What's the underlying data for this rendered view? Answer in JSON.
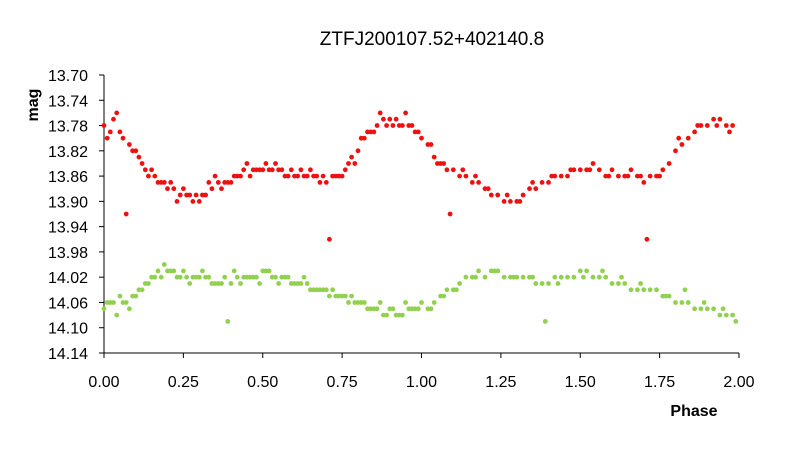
{
  "chart_data": {
    "type": "scatter",
    "title": "ZTFJ200107.52+402140.8",
    "xlabel": "Phase",
    "ylabel": "mag",
    "xlim": [
      0.0,
      2.0
    ],
    "ylim": [
      14.14,
      13.7
    ],
    "y_inverted": true,
    "xticks": [
      "0.00",
      "0.25",
      "0.50",
      "0.75",
      "1.00",
      "1.25",
      "1.50",
      "1.75",
      "2.00"
    ],
    "yticks": [
      "13.70",
      "13.74",
      "13.78",
      "13.82",
      "13.86",
      "13.90",
      "13.94",
      "13.98",
      "14.02",
      "14.06",
      "14.10",
      "14.14"
    ],
    "grid": false,
    "legend": "none",
    "series": [
      {
        "color": "#ee1111",
        "x": [
          0.0,
          0.02,
          0.04,
          0.06,
          0.08,
          0.1,
          0.12,
          0.14,
          0.16,
          0.18,
          0.2,
          0.22,
          0.24,
          0.26,
          0.28,
          0.3,
          0.32,
          0.34,
          0.36,
          0.38,
          0.4,
          0.42,
          0.44,
          0.46,
          0.48,
          0.5,
          0.52,
          0.54,
          0.56,
          0.58,
          0.6,
          0.62,
          0.64,
          0.66,
          0.68,
          0.7,
          0.72,
          0.74,
          0.76,
          0.78,
          0.8,
          0.82,
          0.84,
          0.86,
          0.88,
          0.9,
          0.92,
          0.94,
          0.96,
          0.98,
          0.07,
          0.71,
          0.01,
          0.03,
          0.05,
          0.09,
          0.11,
          0.13,
          0.15,
          0.17,
          0.19,
          0.21,
          0.23,
          0.25,
          0.27,
          0.29,
          0.31,
          0.33,
          0.35,
          0.37,
          0.39,
          0.41,
          0.43,
          0.45,
          0.47,
          0.49,
          0.51,
          0.53,
          0.55,
          0.57,
          0.59,
          0.61,
          0.63,
          0.65,
          0.67,
          0.69,
          0.73,
          0.75,
          0.77,
          0.79,
          0.81,
          0.83,
          0.85,
          0.87,
          0.89,
          0.91,
          0.93,
          0.95,
          0.97,
          0.99,
          1.0,
          1.02,
          1.04,
          1.06,
          1.08,
          1.1,
          1.12,
          1.14,
          1.16,
          1.18,
          1.2,
          1.22,
          1.24,
          1.26,
          1.28,
          1.3,
          1.32,
          1.34,
          1.36,
          1.38,
          1.4,
          1.42,
          1.44,
          1.46,
          1.48,
          1.5,
          1.52,
          1.54,
          1.56,
          1.58,
          1.6,
          1.62,
          1.64,
          1.66,
          1.68,
          1.7,
          1.72,
          1.74,
          1.76,
          1.78,
          1.8,
          1.82,
          1.84,
          1.86,
          1.88,
          1.9,
          1.92,
          1.94,
          1.96,
          1.98,
          1.09,
          1.71,
          1.03,
          1.05,
          1.07,
          1.13,
          1.17,
          1.21,
          1.27,
          1.31,
          1.35,
          1.41,
          1.47,
          1.53,
          1.59,
          1.65,
          1.69,
          1.75,
          1.81,
          1.87,
          1.93,
          1.97
        ],
        "y": [
          13.78,
          13.79,
          13.76,
          13.8,
          13.81,
          13.82,
          13.84,
          13.86,
          13.86,
          13.87,
          13.88,
          13.88,
          13.89,
          13.89,
          13.9,
          13.9,
          13.89,
          13.88,
          13.87,
          13.87,
          13.87,
          13.86,
          13.85,
          13.86,
          13.85,
          13.85,
          13.85,
          13.84,
          13.85,
          13.86,
          13.86,
          13.85,
          13.86,
          13.86,
          13.87,
          13.87,
          13.86,
          13.86,
          13.85,
          13.83,
          13.82,
          13.8,
          13.79,
          13.78,
          13.77,
          13.77,
          13.77,
          13.78,
          13.78,
          13.79,
          13.92,
          13.96,
          13.8,
          13.77,
          13.79,
          13.82,
          13.83,
          13.85,
          13.85,
          13.87,
          13.87,
          13.87,
          13.9,
          13.88,
          13.89,
          13.89,
          13.89,
          13.87,
          13.86,
          13.88,
          13.87,
          13.86,
          13.86,
          13.84,
          13.85,
          13.85,
          13.84,
          13.85,
          13.85,
          13.86,
          13.85,
          13.86,
          13.86,
          13.85,
          13.86,
          13.86,
          13.86,
          13.86,
          13.84,
          13.84,
          13.8,
          13.79,
          13.79,
          13.76,
          13.78,
          13.78,
          13.78,
          13.76,
          13.78,
          13.79,
          13.8,
          13.81,
          13.83,
          13.84,
          13.85,
          13.85,
          13.86,
          13.86,
          13.87,
          13.87,
          13.88,
          13.89,
          13.89,
          13.9,
          13.9,
          13.9,
          13.89,
          13.88,
          13.88,
          13.87,
          13.87,
          13.86,
          13.86,
          13.86,
          13.85,
          13.85,
          13.85,
          13.84,
          13.85,
          13.86,
          13.85,
          13.86,
          13.86,
          13.85,
          13.86,
          13.87,
          13.86,
          13.86,
          13.85,
          13.84,
          13.82,
          13.81,
          13.8,
          13.79,
          13.78,
          13.78,
          13.77,
          13.77,
          13.78,
          13.78,
          13.92,
          13.96,
          13.81,
          13.84,
          13.84,
          13.85,
          13.86,
          13.88,
          13.89,
          13.9,
          13.87,
          13.86,
          13.85,
          13.85,
          13.86,
          13.86,
          13.86,
          13.86,
          13.8,
          13.78,
          13.78,
          13.79
        ]
      },
      {
        "color": "#92d050",
        "x": [
          0.0,
          0.02,
          0.04,
          0.06,
          0.08,
          0.1,
          0.12,
          0.14,
          0.16,
          0.18,
          0.2,
          0.22,
          0.24,
          0.26,
          0.28,
          0.3,
          0.32,
          0.34,
          0.36,
          0.38,
          0.4,
          0.42,
          0.44,
          0.46,
          0.48,
          0.5,
          0.52,
          0.54,
          0.56,
          0.58,
          0.6,
          0.62,
          0.64,
          0.66,
          0.68,
          0.7,
          0.72,
          0.74,
          0.76,
          0.78,
          0.8,
          0.82,
          0.84,
          0.86,
          0.88,
          0.9,
          0.92,
          0.94,
          0.96,
          0.98,
          0.39,
          0.01,
          0.03,
          0.05,
          0.07,
          0.09,
          0.11,
          0.13,
          0.15,
          0.17,
          0.19,
          0.21,
          0.23,
          0.25,
          0.27,
          0.29,
          0.31,
          0.33,
          0.35,
          0.37,
          0.41,
          0.43,
          0.45,
          0.47,
          0.49,
          0.51,
          0.53,
          0.55,
          0.57,
          0.59,
          0.61,
          0.63,
          0.65,
          0.67,
          0.69,
          0.71,
          0.73,
          0.75,
          0.77,
          0.79,
          0.81,
          0.83,
          0.85,
          0.87,
          0.89,
          0.91,
          0.93,
          0.95,
          0.97,
          0.99,
          1.0,
          1.02,
          1.04,
          1.06,
          1.08,
          1.1,
          1.12,
          1.14,
          1.16,
          1.18,
          1.2,
          1.22,
          1.24,
          1.26,
          1.28,
          1.3,
          1.32,
          1.34,
          1.36,
          1.38,
          1.4,
          1.42,
          1.44,
          1.46,
          1.48,
          1.5,
          1.52,
          1.54,
          1.56,
          1.58,
          1.6,
          1.62,
          1.64,
          1.66,
          1.68,
          1.7,
          1.72,
          1.74,
          1.76,
          1.78,
          1.8,
          1.82,
          1.84,
          1.86,
          1.88,
          1.9,
          1.92,
          1.94,
          1.96,
          1.98,
          1.39,
          1.03,
          1.07,
          1.11,
          1.17,
          1.23,
          1.29,
          1.35,
          1.43,
          1.51,
          1.57,
          1.63,
          1.69,
          1.77,
          1.83,
          1.89,
          1.95,
          1.99
        ],
        "y": [
          14.07,
          14.06,
          14.08,
          14.06,
          14.07,
          14.05,
          14.04,
          14.03,
          14.02,
          14.02,
          14.01,
          14.01,
          14.02,
          14.02,
          14.02,
          14.02,
          14.02,
          14.03,
          14.03,
          14.02,
          14.03,
          14.02,
          14.02,
          14.02,
          14.02,
          14.01,
          14.01,
          14.02,
          14.02,
          14.02,
          14.03,
          14.03,
          14.03,
          14.04,
          14.04,
          14.04,
          14.04,
          14.05,
          14.05,
          14.05,
          14.06,
          14.06,
          14.07,
          14.07,
          14.08,
          14.07,
          14.08,
          14.08,
          14.07,
          14.07,
          14.09,
          14.06,
          14.06,
          14.05,
          14.06,
          14.05,
          14.04,
          14.03,
          14.02,
          14.01,
          14.0,
          14.01,
          14.02,
          14.01,
          14.03,
          14.02,
          14.01,
          14.02,
          14.03,
          14.03,
          14.01,
          14.03,
          14.02,
          14.02,
          14.03,
          14.01,
          14.02,
          14.03,
          14.02,
          14.03,
          14.03,
          14.02,
          14.04,
          14.04,
          14.04,
          14.05,
          14.05,
          14.05,
          14.06,
          14.06,
          14.06,
          14.07,
          14.07,
          14.06,
          14.08,
          14.07,
          14.08,
          14.06,
          14.07,
          14.07,
          14.06,
          14.07,
          14.06,
          14.05,
          14.04,
          14.04,
          14.03,
          14.02,
          14.02,
          14.01,
          14.02,
          14.01,
          14.01,
          14.02,
          14.02,
          14.02,
          14.02,
          14.02,
          14.03,
          14.03,
          14.03,
          14.02,
          14.02,
          14.02,
          14.02,
          14.01,
          14.01,
          14.02,
          14.02,
          14.02,
          14.03,
          14.03,
          14.03,
          14.04,
          14.04,
          14.04,
          14.04,
          14.04,
          14.05,
          14.05,
          14.06,
          14.06,
          14.06,
          14.07,
          14.07,
          14.07,
          14.07,
          14.08,
          14.08,
          14.08,
          14.09,
          14.07,
          14.05,
          14.04,
          14.02,
          14.01,
          14.02,
          14.02,
          14.03,
          14.02,
          14.01,
          14.02,
          14.03,
          14.05,
          14.04,
          14.06,
          14.07,
          14.09
        ]
      }
    ]
  }
}
